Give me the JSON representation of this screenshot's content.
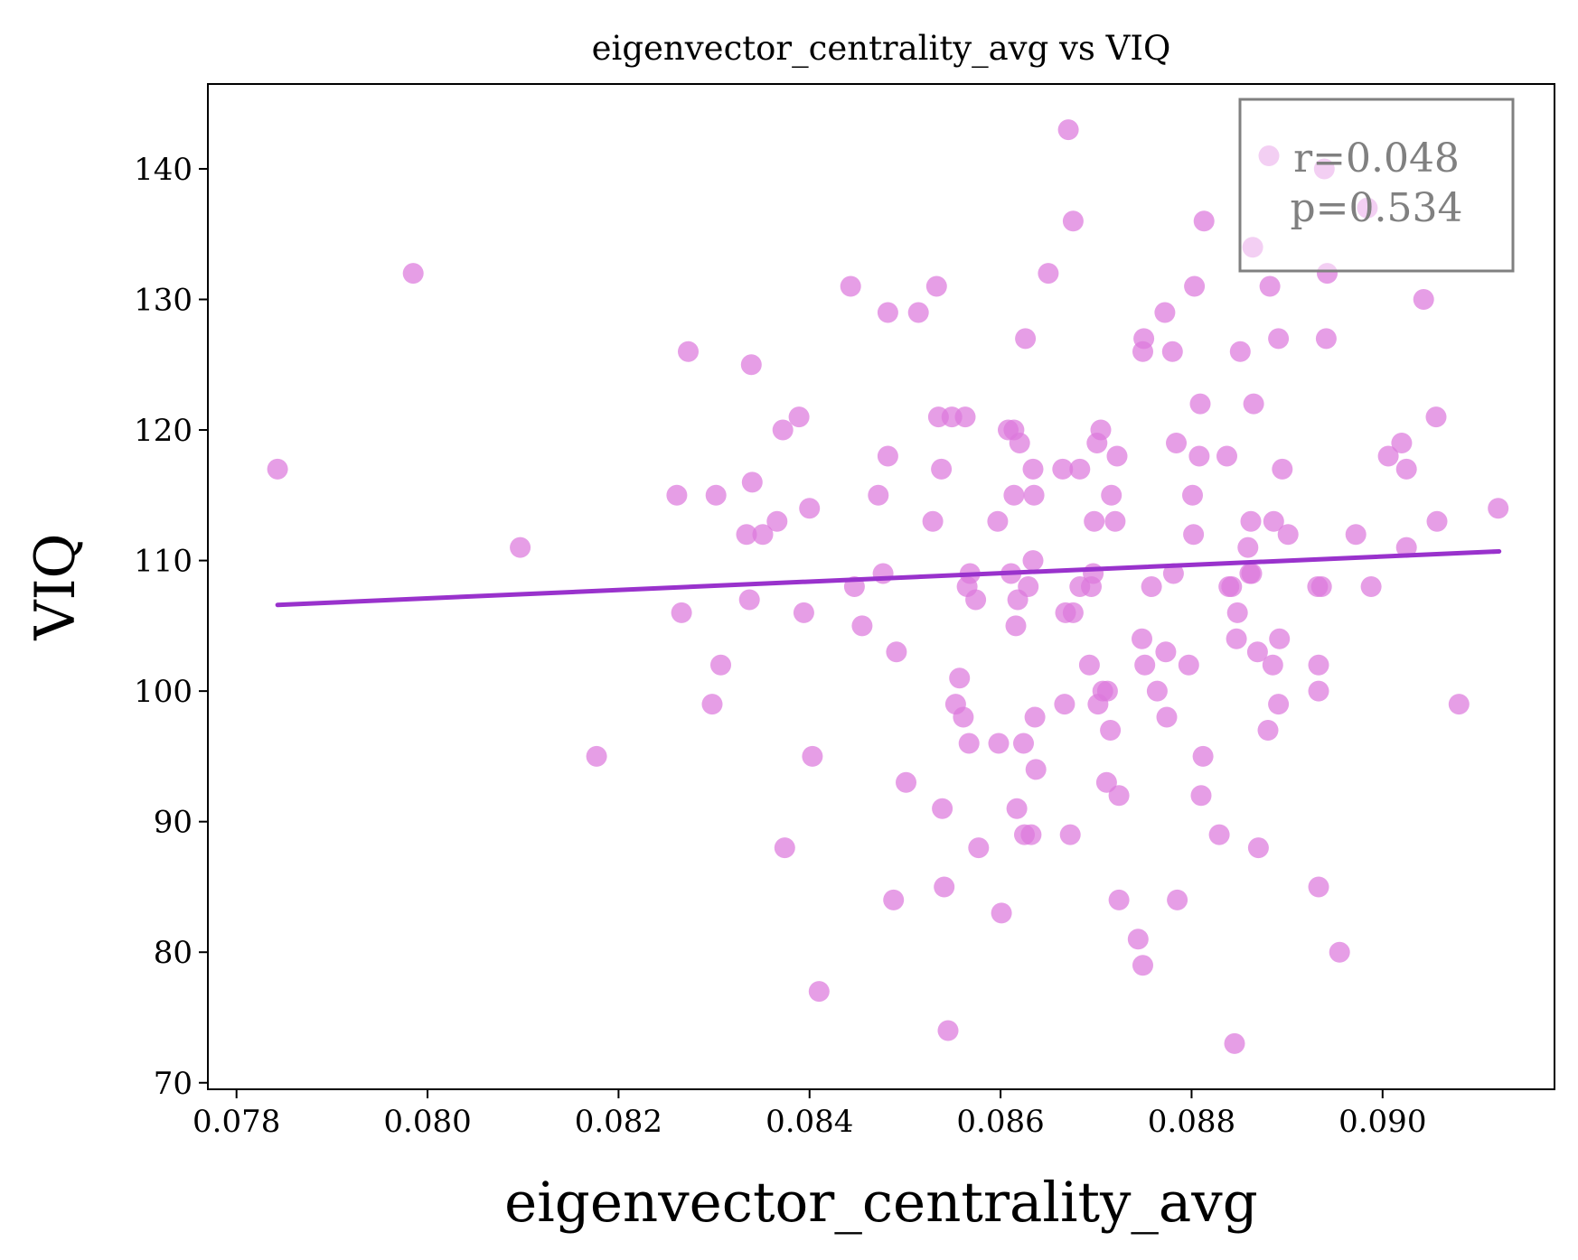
{
  "chart_data": {
    "type": "scatter",
    "title": "eigenvector_centrality_avg vs VIQ",
    "xlabel": "eigenvector_centrality_avg",
    "ylabel": "VIQ",
    "xlim": [
      0.0777,
      0.0918
    ],
    "ylim": [
      69.5,
      146.5
    ],
    "xticks": [
      0.078,
      0.08,
      0.082,
      0.084,
      0.086,
      0.088,
      0.09
    ],
    "xtick_labels": [
      "0.078",
      "0.080",
      "0.082",
      "0.084",
      "0.086",
      "0.088",
      "0.090"
    ],
    "yticks": [
      70,
      80,
      90,
      100,
      110,
      120,
      130,
      140
    ],
    "ytick_labels": [
      "70",
      "80",
      "90",
      "100",
      "110",
      "120",
      "130",
      "140"
    ],
    "grid": false,
    "point_color": "#dc78dc",
    "line_color": "#9932cc",
    "stats_text": [
      "r=0.048",
      "p=0.534"
    ],
    "stats_color": "#808080",
    "regression": {
      "x": [
        0.07843,
        0.09122
      ],
      "y": [
        106.6,
        110.7
      ]
    },
    "points": [
      [
        0.07843,
        117
      ],
      [
        0.07985,
        132
      ],
      [
        0.08097,
        111
      ],
      [
        0.08177,
        95
      ],
      [
        0.08261,
        115
      ],
      [
        0.08266,
        106
      ],
      [
        0.08273,
        126
      ],
      [
        0.08298,
        99
      ],
      [
        0.08302,
        115
      ],
      [
        0.08307,
        102
      ],
      [
        0.08334,
        112
      ],
      [
        0.08337,
        107
      ],
      [
        0.08339,
        125
      ],
      [
        0.0834,
        116
      ],
      [
        0.08351,
        112
      ],
      [
        0.08366,
        113
      ],
      [
        0.08372,
        120
      ],
      [
        0.08374,
        88
      ],
      [
        0.08389,
        121
      ],
      [
        0.08394,
        106
      ],
      [
        0.084,
        114
      ],
      [
        0.08403,
        95
      ],
      [
        0.0841,
        77
      ],
      [
        0.08443,
        131
      ],
      [
        0.08447,
        108
      ],
      [
        0.08455,
        105
      ],
      [
        0.08472,
        115
      ],
      [
        0.08477,
        109
      ],
      [
        0.08482,
        129
      ],
      [
        0.08482,
        118
      ],
      [
        0.08488,
        84
      ],
      [
        0.08491,
        103
      ],
      [
        0.08501,
        93
      ],
      [
        0.08514,
        129
      ],
      [
        0.08529,
        113
      ],
      [
        0.08533,
        131
      ],
      [
        0.08535,
        121
      ],
      [
        0.08538,
        117
      ],
      [
        0.08539,
        91
      ],
      [
        0.08541,
        85
      ],
      [
        0.08545,
        74
      ],
      [
        0.08549,
        121
      ],
      [
        0.08553,
        99
      ],
      [
        0.08557,
        101
      ],
      [
        0.08561,
        98
      ],
      [
        0.08563,
        121
      ],
      [
        0.08565,
        108
      ],
      [
        0.08567,
        96
      ],
      [
        0.08568,
        109
      ],
      [
        0.08574,
        107
      ],
      [
        0.08577,
        88
      ],
      [
        0.08597,
        113
      ],
      [
        0.08598,
        96
      ],
      [
        0.08601,
        83
      ],
      [
        0.08608,
        120
      ],
      [
        0.08611,
        109
      ],
      [
        0.08614,
        120
      ],
      [
        0.08614,
        115
      ],
      [
        0.08616,
        105
      ],
      [
        0.08617,
        91
      ],
      [
        0.08618,
        107
      ],
      [
        0.0862,
        119
      ],
      [
        0.08624,
        96
      ],
      [
        0.08625,
        89
      ],
      [
        0.08626,
        127
      ],
      [
        0.08629,
        108
      ],
      [
        0.08632,
        89
      ],
      [
        0.08634,
        117
      ],
      [
        0.08634,
        110
      ],
      [
        0.08635,
        115
      ],
      [
        0.08636,
        98
      ],
      [
        0.08637,
        94
      ],
      [
        0.0865,
        132
      ],
      [
        0.08665,
        117
      ],
      [
        0.08667,
        99
      ],
      [
        0.08668,
        106
      ],
      [
        0.08671,
        143
      ],
      [
        0.08673,
        89
      ],
      [
        0.08676,
        136
      ],
      [
        0.08676,
        106
      ],
      [
        0.08683,
        117
      ],
      [
        0.08683,
        108
      ],
      [
        0.08693,
        102
      ],
      [
        0.08695,
        108
      ],
      [
        0.08697,
        109
      ],
      [
        0.08698,
        113
      ],
      [
        0.08701,
        119
      ],
      [
        0.08702,
        99
      ],
      [
        0.08705,
        120
      ],
      [
        0.08707,
        100
      ],
      [
        0.08711,
        93
      ],
      [
        0.08712,
        100
      ],
      [
        0.08715,
        97
      ],
      [
        0.08716,
        115
      ],
      [
        0.0872,
        113
      ],
      [
        0.08722,
        118
      ],
      [
        0.08724,
        92
      ],
      [
        0.08724,
        84
      ],
      [
        0.08744,
        81
      ],
      [
        0.08748,
        104
      ],
      [
        0.08749,
        126
      ],
      [
        0.08749,
        79
      ],
      [
        0.0875,
        127
      ],
      [
        0.08751,
        102
      ],
      [
        0.08758,
        108
      ],
      [
        0.08764,
        100
      ],
      [
        0.08772,
        129
      ],
      [
        0.08773,
        103
      ],
      [
        0.08774,
        98
      ],
      [
        0.0878,
        126
      ],
      [
        0.08781,
        109
      ],
      [
        0.08784,
        119
      ],
      [
        0.08785,
        84
      ],
      [
        0.08797,
        102
      ],
      [
        0.08801,
        115
      ],
      [
        0.08802,
        112
      ],
      [
        0.08803,
        131
      ],
      [
        0.08808,
        118
      ],
      [
        0.08809,
        122
      ],
      [
        0.0881,
        92
      ],
      [
        0.08812,
        95
      ],
      [
        0.08813,
        136
      ],
      [
        0.08829,
        89
      ],
      [
        0.08837,
        118
      ],
      [
        0.08839,
        108
      ],
      [
        0.08842,
        108
      ],
      [
        0.08845,
        73
      ],
      [
        0.08847,
        104
      ],
      [
        0.08848,
        106
      ],
      [
        0.08851,
        126
      ],
      [
        0.08859,
        111
      ],
      [
        0.08861,
        109
      ],
      [
        0.08862,
        113
      ],
      [
        0.08863,
        109
      ],
      [
        0.08864,
        134
      ],
      [
        0.08865,
        122
      ],
      [
        0.08869,
        103
      ],
      [
        0.0887,
        88
      ],
      [
        0.0888,
        97
      ],
      [
        0.08881,
        141
      ],
      [
        0.08882,
        131
      ],
      [
        0.08885,
        102
      ],
      [
        0.08886,
        113
      ],
      [
        0.08891,
        99
      ],
      [
        0.08891,
        127
      ],
      [
        0.08892,
        104
      ],
      [
        0.08895,
        117
      ],
      [
        0.08901,
        112
      ],
      [
        0.08932,
        108
      ],
      [
        0.08933,
        102
      ],
      [
        0.08933,
        100
      ],
      [
        0.08933,
        85
      ],
      [
        0.08936,
        108
      ],
      [
        0.08939,
        140
      ],
      [
        0.08941,
        127
      ],
      [
        0.08942,
        132
      ],
      [
        0.08955,
        80
      ],
      [
        0.08972,
        112
      ],
      [
        0.08984,
        137
      ],
      [
        0.08988,
        108
      ],
      [
        0.09006,
        118
      ],
      [
        0.0902,
        119
      ],
      [
        0.09025,
        111
      ],
      [
        0.09025,
        117
      ],
      [
        0.09043,
        130
      ],
      [
        0.09056,
        121
      ],
      [
        0.09057,
        113
      ],
      [
        0.0908,
        99
      ],
      [
        0.09121,
        114
      ]
    ]
  }
}
